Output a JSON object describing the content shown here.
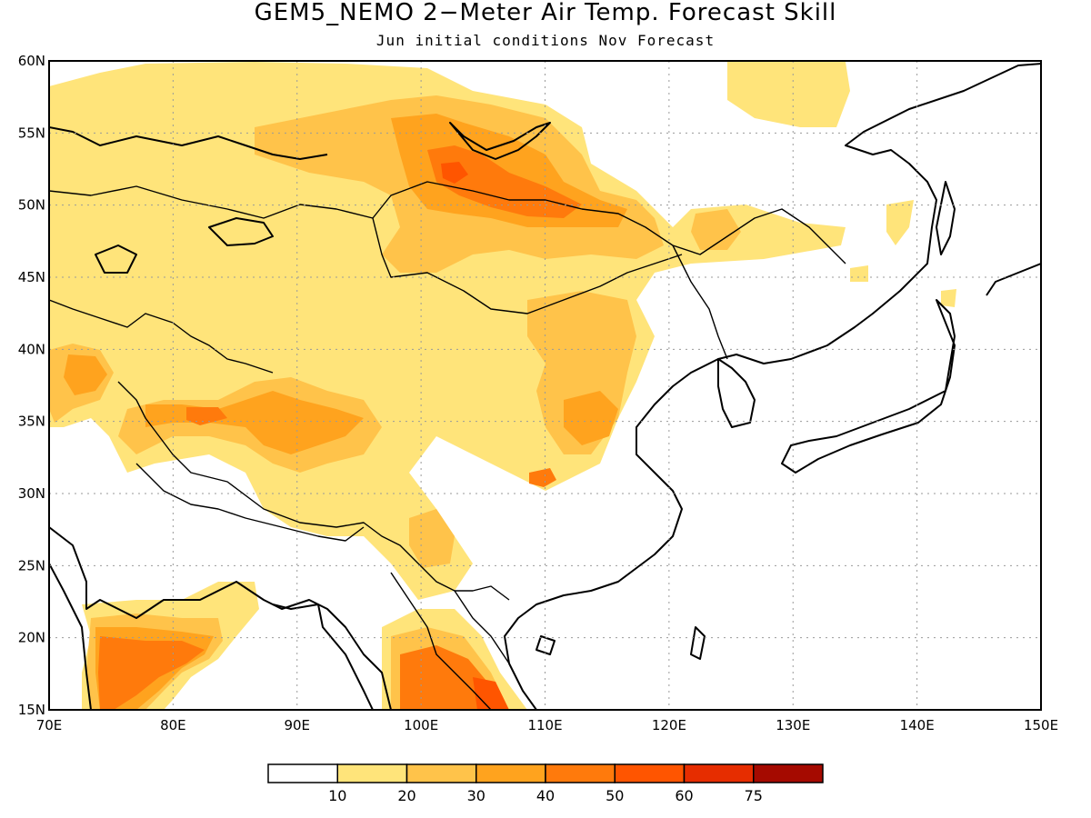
{
  "title": "GEM5_NEMO 2−Meter Air Temp. Forecast Skill",
  "subtitle": "Jun initial conditions  Nov Forecast",
  "map": {
    "lon_range": [
      70,
      150
    ],
    "lat_range": [
      15,
      60
    ],
    "lon_ticks": [
      "70E",
      "80E",
      "90E",
      "100E",
      "110E",
      "120E",
      "130E",
      "140E",
      "150E"
    ],
    "lat_ticks": [
      "60N",
      "55N",
      "50N",
      "45N",
      "40N",
      "35N",
      "30N",
      "25N",
      "20N",
      "15N"
    ],
    "grid": "dotted",
    "region": "East and South Asia"
  },
  "colorbar": {
    "placement": "bottom",
    "colors": [
      "#ffffff",
      "#ffe47a",
      "#ffc34a",
      "#ffa31e",
      "#ff7a0c",
      "#ff5500",
      "#e62d00",
      "#a50a00"
    ],
    "labels": [
      "10",
      "20",
      "30",
      "40",
      "50",
      "60",
      "75"
    ]
  },
  "skill_regions": [
    {
      "name": "siberia-north",
      "lon": 85,
      "lat": 57,
      "level": 1
    },
    {
      "name": "baikal-region",
      "lon": 103,
      "lat": 52,
      "level": 4
    },
    {
      "name": "mongolia",
      "lon": 102,
      "lat": 48,
      "level": 2
    },
    {
      "name": "tibet-north",
      "lon": 90,
      "lat": 35,
      "level": 3
    },
    {
      "name": "north-china",
      "lon": 111,
      "lat": 40,
      "level": 3
    },
    {
      "name": "pamir",
      "lon": 73,
      "lat": 38,
      "level": 3
    },
    {
      "name": "central-india",
      "lon": 78,
      "lat": 19,
      "level": 4
    },
    {
      "name": "indochina",
      "lon": 103,
      "lat": 17,
      "level": 5
    },
    {
      "name": "sichuan",
      "lon": 109,
      "lat": 31,
      "level": 5
    },
    {
      "name": "yunnan",
      "lon": 101,
      "lat": 26,
      "level": 3
    }
  ]
}
